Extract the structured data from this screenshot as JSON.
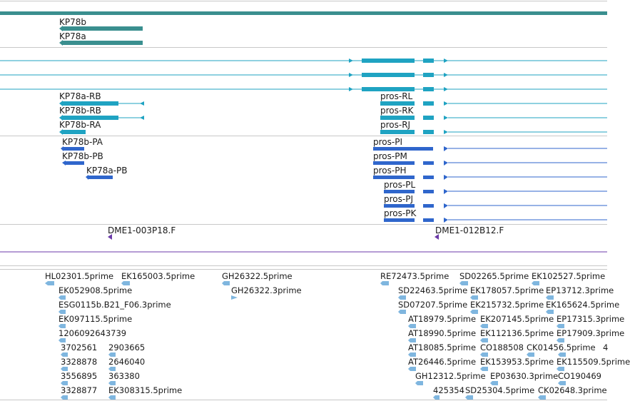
{
  "colors": {
    "track_header": "#3a8f8f",
    "gene": "#3a8f8f",
    "transcript": "#1fa3c2",
    "protein": "#2f66cc",
    "clone": "#6b3aa8",
    "est": "#7fb6df",
    "divider": "#c8c8c8"
  },
  "genes": [
    "KP78b",
    "KP78a"
  ],
  "transcripts_left": [
    "KP78a-RB",
    "KP78b-RB",
    "KP78b-RA"
  ],
  "transcripts_right": [
    "pros-RL",
    "pros-RK",
    "pros-RJ"
  ],
  "proteins_left": [
    "KP78b-PA",
    "KP78b-PB",
    "KP78a-PB"
  ],
  "proteins_right": [
    "pros-PI",
    "pros-PM",
    "pros-PH",
    "pros-PL",
    "pros-PJ",
    "pros-PK"
  ],
  "clones": [
    "DME1-003P18.F",
    "DME1-012B12.F"
  ],
  "ests": {
    "col1": [
      "HL02301.5prime",
      "EK052908.5prime",
      "ESG0115b.B21_F06.3prime",
      "EK097115.5prime",
      "1206092643739",
      "3702561",
      "3328878",
      "3556895",
      "3328877"
    ],
    "col2": [
      "EK165003.5prime",
      "2903665",
      "2646040",
      "363380",
      "EK308315.5prime"
    ],
    "col3": [
      "GH26322.5prime",
      "GH26322.3prime"
    ],
    "col4": [
      "RE72473.5prime",
      "SD22463.5prime",
      "SD07207.5prime",
      "AT18979.5prime",
      "AT18990.5prime",
      "AT18085.5prime",
      "AT26446.5prime",
      "GH12312.5prime",
      "425354"
    ],
    "col5": [
      "SD02265.5prime",
      "EK178057.5prime",
      "EK215732.5prime",
      "EK207145.5prime",
      "EK112136.5prime",
      "CO188508",
      "EK153953.5prime",
      "EP03630.3prime",
      "SD25304.5prime"
    ],
    "col6": [
      "EK102527.5prime",
      "EP13712.3prime",
      "EK165624.5prime",
      "EP17315.3prime",
      "EP17909.3prime",
      "CK01456.5prime",
      "EK115509.5prime",
      "CO190469",
      "CK02648.3prime"
    ],
    "col6_extra": "4"
  }
}
